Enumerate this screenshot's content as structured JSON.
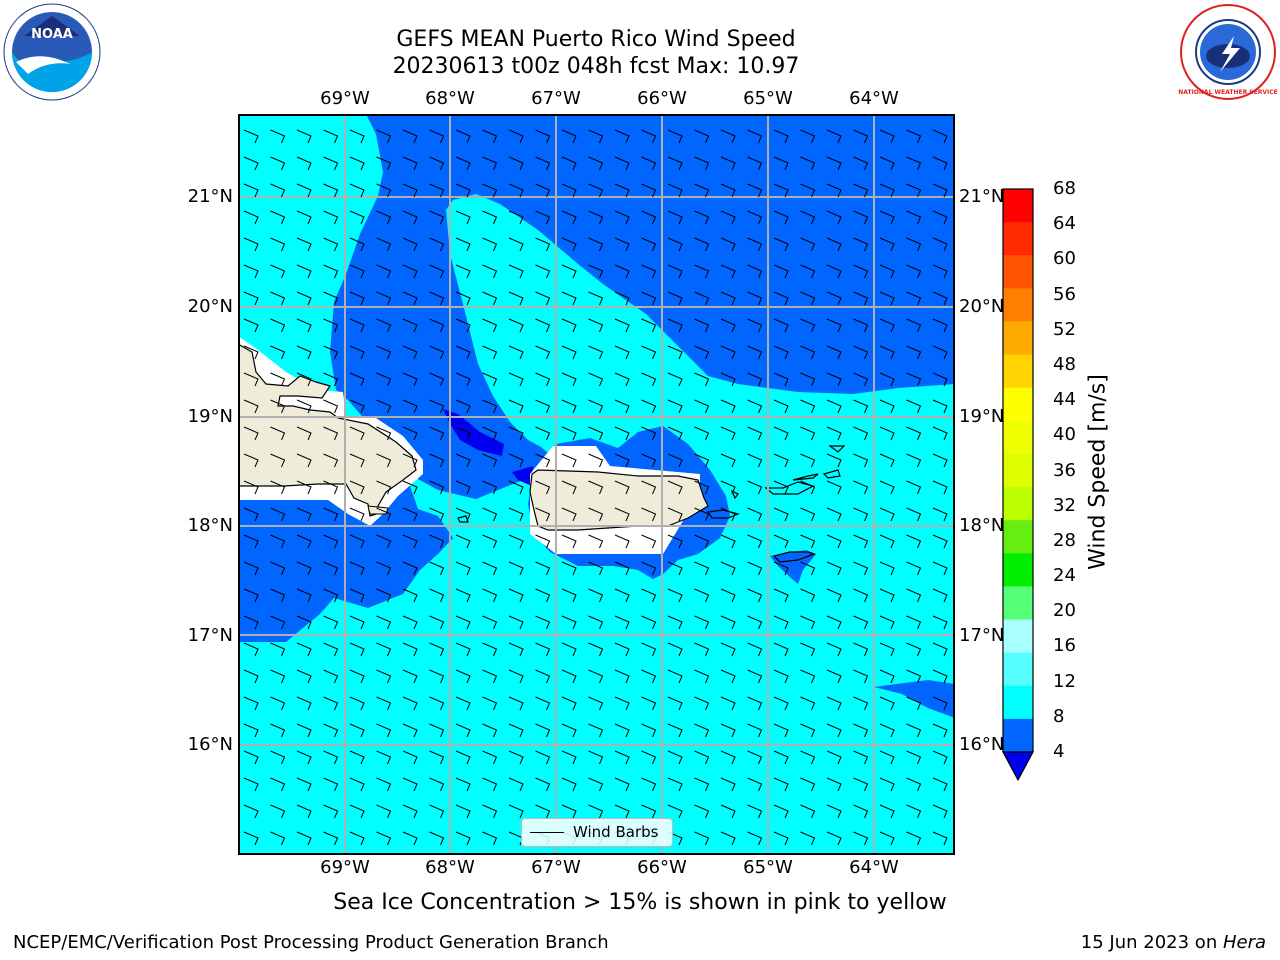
{
  "title": {
    "line1": "GEFS MEAN Puerto Rico Wind Speed",
    "line2": "20230613 t00z 048h fcst   Max: 10.97"
  },
  "map": {
    "region": "Puerto Rico",
    "longitude_ticks": [
      "69°W",
      "68°W",
      "67°W",
      "66°W",
      "65°W",
      "64°W"
    ],
    "latitude_ticks": [
      "21°N",
      "20°N",
      "19°N",
      "18°N",
      "17°N",
      "16°N"
    ],
    "field_colors": {
      "4-8": "#0066ff",
      "8-12": "#00ffff",
      "below-4": "#0000ee",
      "land": "#efedd9",
      "masked": "#ffffff",
      "grid": "#b0b0b0"
    },
    "legend": {
      "label": "Wind Barbs"
    }
  },
  "colorbar": {
    "label": "Wind Speed [m/s]",
    "ticks": [
      "68",
      "64",
      "60",
      "56",
      "52",
      "48",
      "44",
      "40",
      "36",
      "32",
      "28",
      "24",
      "20",
      "16",
      "12",
      "8",
      "4"
    ],
    "colors": [
      "#ff0000",
      "#ff2a00",
      "#ff5500",
      "#ff7f00",
      "#ffaa00",
      "#ffd400",
      "#ffff00",
      "#eeff00",
      "#ddff00",
      "#bbff00",
      "#66ee11",
      "#00ee00",
      "#55ff77",
      "#aaffff",
      "#55ffff",
      "#00ffff",
      "#0066ff"
    ],
    "under_color": "#0000ee"
  },
  "subtitle": "Sea Ice Concentration > 15% is shown in pink to yellow",
  "footer": {
    "left": "NCEP/EMC/Verification Post Processing Product Generation Branch",
    "right_prefix": "15 Jun 2023 on ",
    "right_host": "Hera"
  },
  "logos": {
    "left": "NOAA",
    "right": "NATIONAL WEATHER SERVICE"
  }
}
